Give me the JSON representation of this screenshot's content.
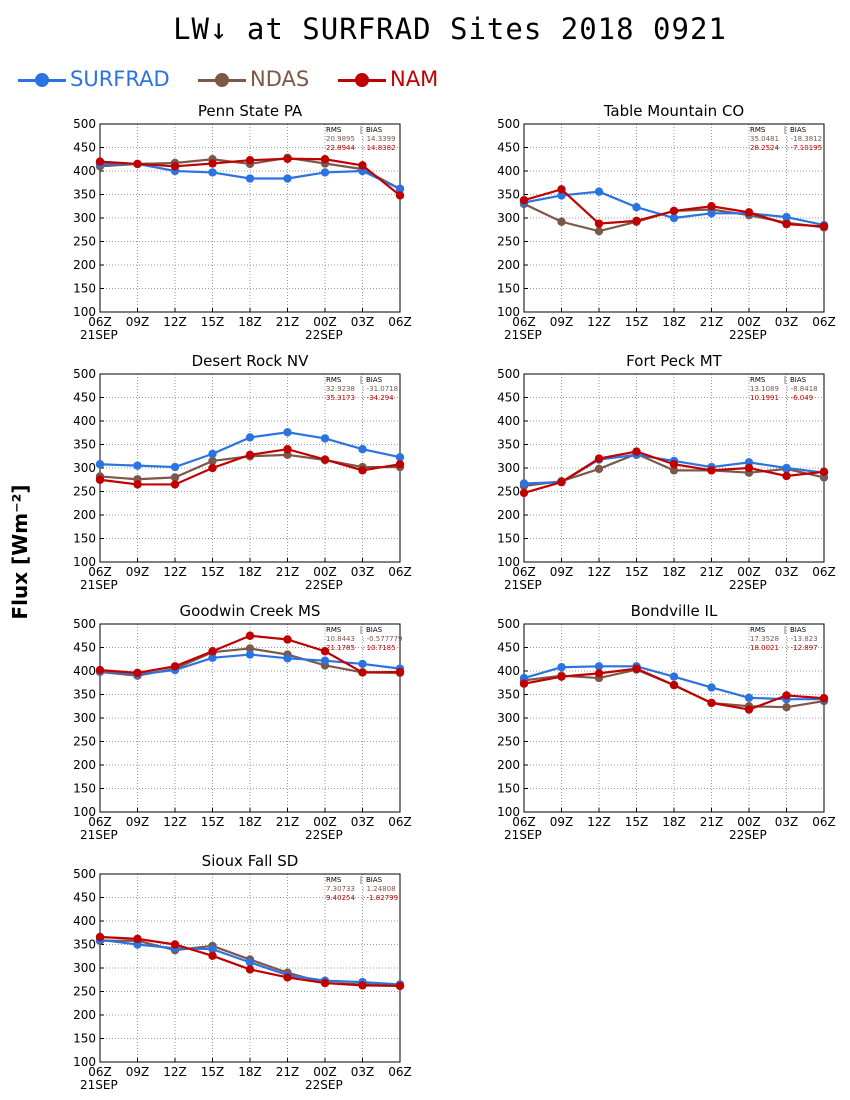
{
  "title": "LW↓ at SURFRAD Sites    2018 0921",
  "ylabel": "Flux [Wm⁻²]",
  "colors": {
    "SURFRAD": "#2b73e0",
    "NDAS": "#7d5748",
    "NAM": "#c00000"
  },
  "legend": [
    {
      "name": "SURFRAD",
      "color": "#2b73e0"
    },
    {
      "name": "NDAS",
      "color": "#7d5748"
    },
    {
      "name": "NAM",
      "color": "#c00000"
    }
  ],
  "chart_data": [
    {
      "type": "line",
      "title": "Penn State PA",
      "categories": [
        "06Z",
        "09Z",
        "12Z",
        "15Z",
        "18Z",
        "21Z",
        "00Z",
        "03Z",
        "06Z"
      ],
      "date_labels": [
        "21SEP",
        "22SEP"
      ],
      "ylim": [
        100,
        500
      ],
      "yticks": [
        "100",
        "150",
        "200",
        "250",
        "300",
        "350",
        "400",
        "450",
        "500"
      ],
      "stats": {
        "header": [
          "RMS",
          "BIAS"
        ],
        "ndas": [
          "20.9895",
          "14.3399"
        ],
        "nam": [
          "22.8944",
          "14.8382"
        ]
      },
      "series": [
        {
          "name": "SURFRAD",
          "values": [
            415,
            415,
            400,
            397,
            384,
            384,
            397,
            400,
            362
          ]
        },
        {
          "name": "NDAS",
          "values": [
            410,
            415,
            417,
            425,
            415,
            428,
            416,
            404,
            362
          ]
        },
        {
          "name": "NAM",
          "values": [
            420,
            415,
            410,
            416,
            423,
            426,
            425,
            412,
            348
          ]
        }
      ]
    },
    {
      "type": "line",
      "title": "Table Mountain CO",
      "categories": [
        "06Z",
        "09Z",
        "12Z",
        "15Z",
        "18Z",
        "21Z",
        "00Z",
        "03Z",
        "06Z"
      ],
      "date_labels": [
        "21SEP",
        "22SEP"
      ],
      "ylim": [
        100,
        500
      ],
      "yticks": [
        "100",
        "150",
        "200",
        "250",
        "300",
        "350",
        "400",
        "450",
        "500"
      ],
      "stats": {
        "header": [
          "RMS",
          "BIAS"
        ],
        "ndas": [
          "35.0481",
          "-18.3812"
        ],
        "nam": [
          "28.2524",
          "-7.10195"
        ]
      },
      "series": [
        {
          "name": "SURFRAD",
          "values": [
            333,
            348,
            356,
            323,
            300,
            310,
            310,
            302,
            285
          ]
        },
        {
          "name": "NDAS",
          "values": [
            330,
            292,
            272,
            292,
            315,
            318,
            306,
            290,
            280
          ]
        },
        {
          "name": "NAM",
          "values": [
            338,
            361,
            288,
            294,
            315,
            325,
            312,
            287,
            282
          ]
        }
      ]
    },
    {
      "type": "line",
      "title": "Desert Rock NV",
      "categories": [
        "06Z",
        "09Z",
        "12Z",
        "15Z",
        "18Z",
        "21Z",
        "00Z",
        "03Z",
        "06Z"
      ],
      "date_labels": [
        "21SEP",
        "22SEP"
      ],
      "ylim": [
        100,
        500
      ],
      "yticks": [
        "100",
        "150",
        "200",
        "250",
        "300",
        "350",
        "400",
        "450",
        "500"
      ],
      "stats": {
        "header": [
          "RMS",
          "BIAS"
        ],
        "ndas": [
          "32.9238",
          "-31.0718"
        ],
        "nam": [
          "35.3173",
          "-34.294"
        ]
      },
      "series": [
        {
          "name": "SURFRAD",
          "values": [
            308,
            305,
            302,
            330,
            365,
            376,
            363,
            340,
            323
          ]
        },
        {
          "name": "NDAS",
          "values": [
            282,
            276,
            280,
            315,
            325,
            328,
            317,
            302,
            302
          ]
        },
        {
          "name": "NAM",
          "values": [
            275,
            265,
            265,
            300,
            328,
            340,
            318,
            295,
            308
          ]
        }
      ]
    },
    {
      "type": "line",
      "title": "Fort Peck MT",
      "categories": [
        "06Z",
        "09Z",
        "12Z",
        "15Z",
        "18Z",
        "21Z",
        "00Z",
        "03Z",
        "06Z"
      ],
      "date_labels": [
        "21SEP",
        "22SEP"
      ],
      "ylim": [
        100,
        500
      ],
      "yticks": [
        "100",
        "150",
        "200",
        "250",
        "300",
        "350",
        "400",
        "450",
        "500"
      ],
      "stats": {
        "header": [
          "RMS",
          "BIAS"
        ],
        "ndas": [
          "13.1089",
          "-8.8418"
        ],
        "nam": [
          "10.1991",
          "-6.049"
        ]
      },
      "series": [
        {
          "name": "SURFRAD",
          "values": [
            267,
            270,
            318,
            328,
            315,
            302,
            312,
            300,
            290
          ]
        },
        {
          "name": "NDAS",
          "values": [
            262,
            272,
            298,
            330,
            295,
            295,
            290,
            298,
            280
          ]
        },
        {
          "name": "NAM",
          "values": [
            247,
            270,
            320,
            335,
            308,
            295,
            300,
            283,
            292
          ]
        }
      ]
    },
    {
      "type": "line",
      "title": "Goodwin Creek MS",
      "categories": [
        "06Z",
        "09Z",
        "12Z",
        "15Z",
        "18Z",
        "21Z",
        "00Z",
        "03Z",
        "06Z"
      ],
      "date_labels": [
        "21SEP",
        "22SEP"
      ],
      "ylim": [
        100,
        500
      ],
      "yticks": [
        "100",
        "150",
        "200",
        "250",
        "300",
        "350",
        "400",
        "450",
        "500"
      ],
      "stats": {
        "header": [
          "RMS",
          "BIAS"
        ],
        "ndas": [
          "10.8443",
          "-0.577779"
        ],
        "nam": [
          "21.1785",
          "10.7185"
        ]
      },
      "series": [
        {
          "name": "SURFRAD",
          "values": [
            400,
            393,
            402,
            428,
            435,
            427,
            422,
            415,
            405
          ]
        },
        {
          "name": "NDAS",
          "values": [
            398,
            390,
            405,
            440,
            448,
            435,
            412,
            397,
            396
          ]
        },
        {
          "name": "NAM",
          "values": [
            402,
            396,
            410,
            442,
            475,
            467,
            442,
            397,
            398
          ]
        }
      ]
    },
    {
      "type": "line",
      "title": "Bondville IL",
      "categories": [
        "06Z",
        "09Z",
        "12Z",
        "15Z",
        "18Z",
        "21Z",
        "00Z",
        "03Z",
        "06Z"
      ],
      "date_labels": [
        "21SEP",
        "22SEP"
      ],
      "ylim": [
        100,
        500
      ],
      "yticks": [
        "100",
        "150",
        "200",
        "250",
        "300",
        "350",
        "400",
        "450",
        "500"
      ],
      "stats": {
        "header": [
          "RMS",
          "BIAS"
        ],
        "ndas": [
          "17.3528",
          "-13.823"
        ],
        "nam": [
          "18.0021",
          "-12.897"
        ]
      },
      "series": [
        {
          "name": "SURFRAD",
          "values": [
            385,
            408,
            410,
            410,
            388,
            365,
            343,
            340,
            340
          ]
        },
        {
          "name": "NDAS",
          "values": [
            380,
            390,
            385,
            403,
            370,
            332,
            325,
            323,
            336
          ]
        },
        {
          "name": "NAM",
          "values": [
            373,
            388,
            395,
            405,
            370,
            332,
            318,
            348,
            342
          ]
        }
      ]
    },
    {
      "type": "line",
      "title": "Sioux Fall SD",
      "categories": [
        "06Z",
        "09Z",
        "12Z",
        "15Z",
        "18Z",
        "21Z",
        "00Z",
        "03Z",
        "06Z"
      ],
      "date_labels": [
        "21SEP",
        "22SEP"
      ],
      "ylim": [
        100,
        500
      ],
      "yticks": [
        "100",
        "150",
        "200",
        "250",
        "300",
        "350",
        "400",
        "450",
        "500"
      ],
      "stats": {
        "header": [
          "RMS",
          "BIAS"
        ],
        "ndas": [
          "7.30733",
          "1.24808"
        ],
        "nam": [
          "9.40254",
          "-1.82799"
        ]
      },
      "series": [
        {
          "name": "SURFRAD",
          "values": [
            360,
            350,
            342,
            340,
            312,
            285,
            273,
            270,
            265
          ]
        },
        {
          "name": "NDAS",
          "values": [
            358,
            358,
            338,
            347,
            318,
            290,
            268,
            265,
            263
          ]
        },
        {
          "name": "NAM",
          "values": [
            366,
            362,
            350,
            326,
            297,
            280,
            268,
            263,
            262
          ]
        }
      ]
    }
  ]
}
